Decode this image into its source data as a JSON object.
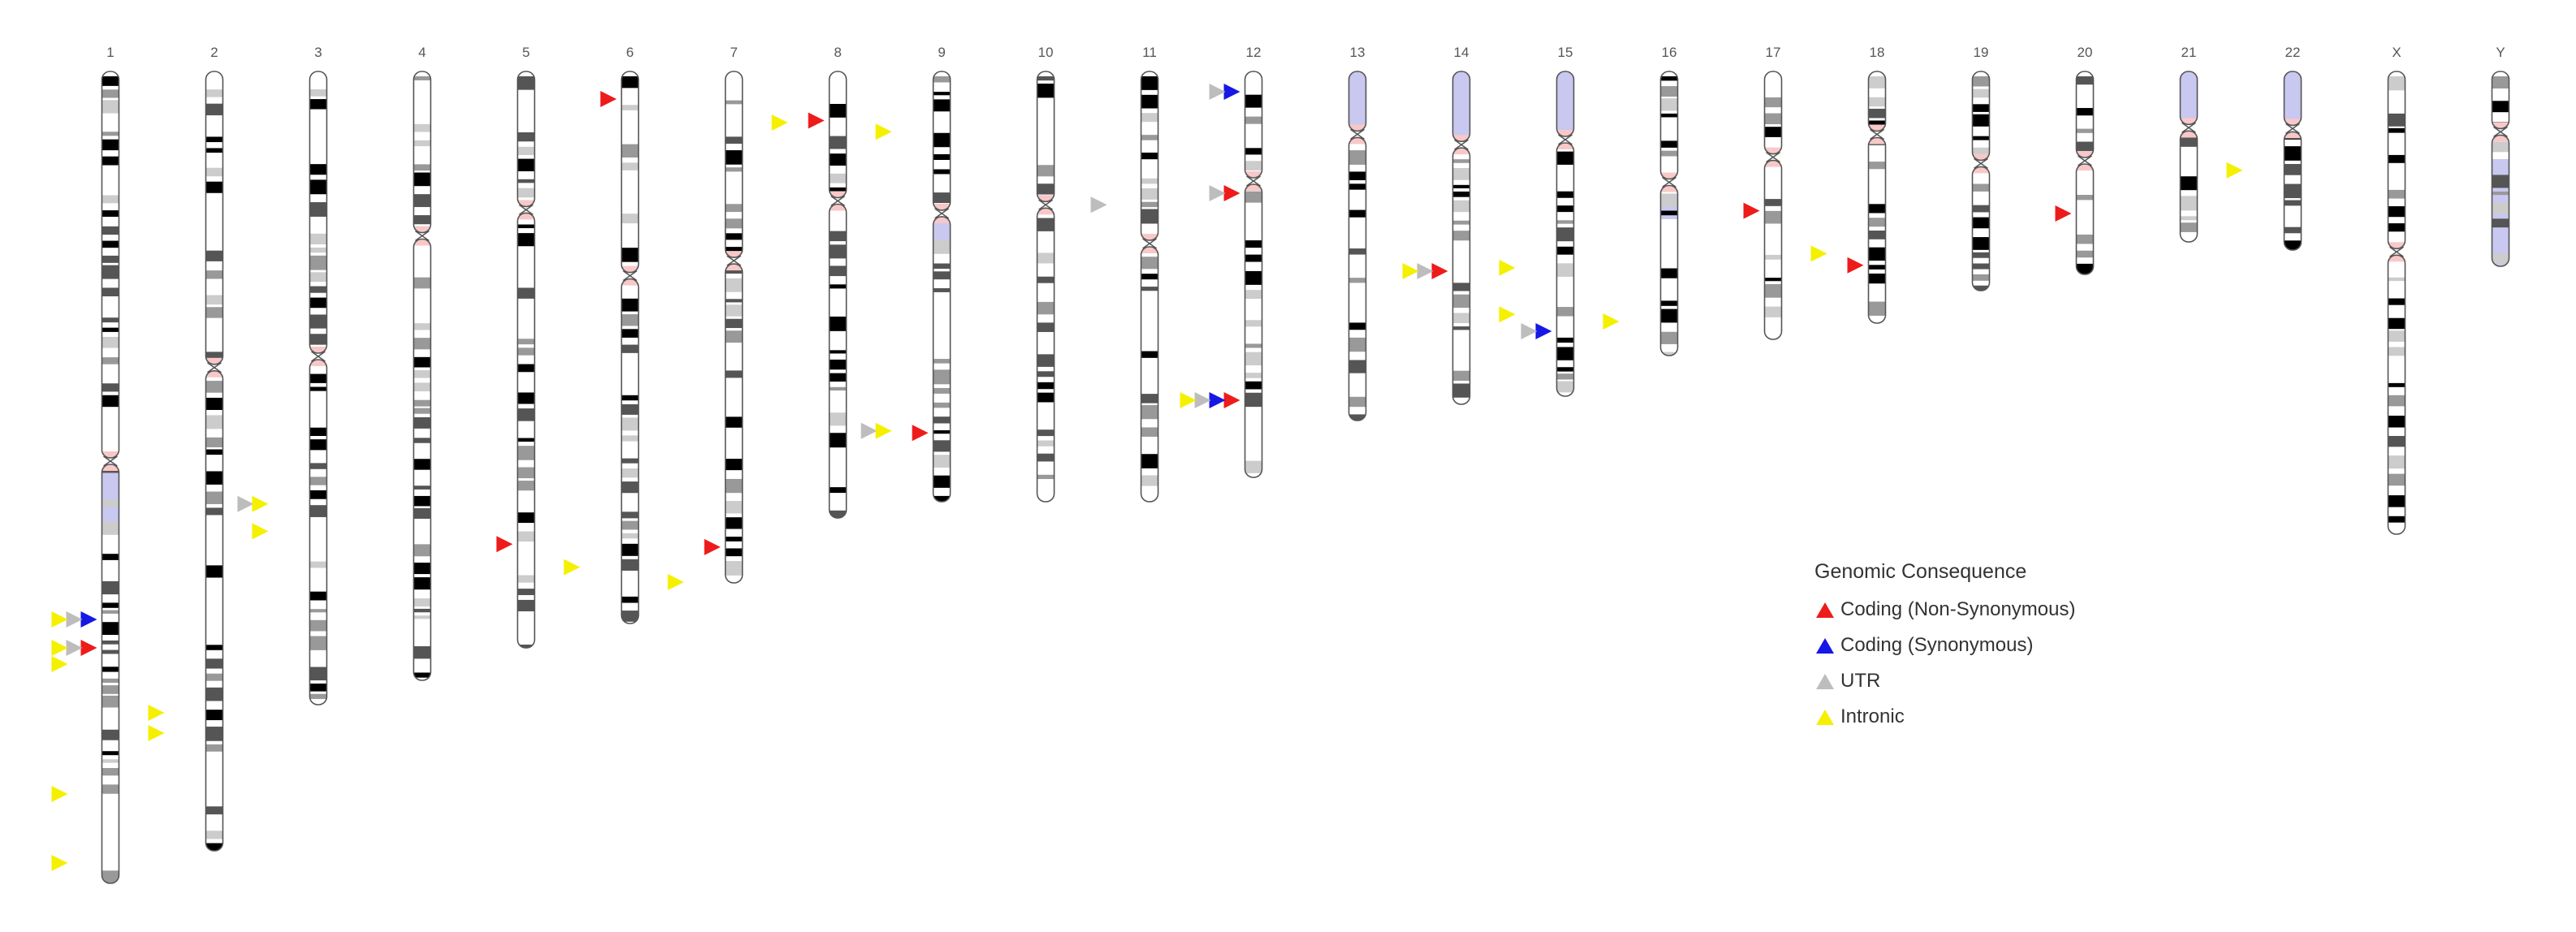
{
  "chromosomes": [
    {
      "name": "1",
      "length": 1.0,
      "centromere": 0.48,
      "stain": "gray"
    },
    {
      "name": "2",
      "length": 0.96,
      "centromere": 0.38,
      "stain": "gray"
    },
    {
      "name": "3",
      "length": 0.78,
      "centromere": 0.45,
      "stain": "gray"
    },
    {
      "name": "4",
      "length": 0.75,
      "centromere": 0.27,
      "stain": "gray"
    },
    {
      "name": "5",
      "length": 0.71,
      "centromere": 0.24,
      "stain": "gray"
    },
    {
      "name": "6",
      "length": 0.68,
      "centromere": 0.37,
      "stain": "gray"
    },
    {
      "name": "7",
      "length": 0.63,
      "centromere": 0.37,
      "stain": "gray"
    },
    {
      "name": "8",
      "length": 0.55,
      "centromere": 0.29,
      "stain": "gray"
    },
    {
      "name": "9",
      "length": 0.53,
      "centromere": 0.33,
      "stain": "gray"
    },
    {
      "name": "10",
      "length": 0.53,
      "centromere": 0.31,
      "stain": "gray"
    },
    {
      "name": "11",
      "length": 0.53,
      "centromere": 0.4,
      "stain": "gray"
    },
    {
      "name": "12",
      "length": 0.5,
      "centromere": 0.27,
      "stain": "gray"
    },
    {
      "name": "13",
      "length": 0.43,
      "centromere": 0.18,
      "stain": "blue"
    },
    {
      "name": "14",
      "length": 0.41,
      "centromere": 0.22,
      "stain": "blue"
    },
    {
      "name": "15",
      "length": 0.4,
      "centromere": 0.21,
      "stain": "blue"
    },
    {
      "name": "16",
      "length": 0.35,
      "centromere": 0.39,
      "stain": "gray"
    },
    {
      "name": "17",
      "length": 0.33,
      "centromere": 0.32,
      "stain": "gray"
    },
    {
      "name": "18",
      "length": 0.31,
      "centromere": 0.25,
      "stain": "gray"
    },
    {
      "name": "19",
      "length": 0.27,
      "centromere": 0.42,
      "stain": "gray"
    },
    {
      "name": "20",
      "length": 0.25,
      "centromere": 0.44,
      "stain": "gray"
    },
    {
      "name": "21",
      "length": 0.21,
      "centromere": 0.33,
      "stain": "blue"
    },
    {
      "name": "22",
      "length": 0.22,
      "centromere": 0.32,
      "stain": "blue"
    },
    {
      "name": "X",
      "length": 0.57,
      "centromere": 0.39,
      "stain": "gray"
    },
    {
      "name": "Y",
      "length": 0.24,
      "centromere": 0.31,
      "stain": "gray"
    }
  ],
  "annotations": [
    {
      "chr": "1",
      "pos": 0.675,
      "side": "left",
      "offset": 0,
      "type": "blue"
    },
    {
      "chr": "1",
      "pos": 0.675,
      "side": "left",
      "offset": 1,
      "type": "gray"
    },
    {
      "chr": "1",
      "pos": 0.675,
      "side": "left",
      "offset": 2,
      "type": "yellow"
    },
    {
      "chr": "1",
      "pos": 0.71,
      "side": "left",
      "offset": 0,
      "type": "red"
    },
    {
      "chr": "1",
      "pos": 0.71,
      "side": "left",
      "offset": 1,
      "type": "gray"
    },
    {
      "chr": "1",
      "pos": 0.71,
      "side": "left",
      "offset": 2,
      "type": "yellow"
    },
    {
      "chr": "1",
      "pos": 0.73,
      "side": "left",
      "offset": 2,
      "type": "yellow"
    },
    {
      "chr": "1",
      "pos": 0.79,
      "side": "right",
      "offset": 2,
      "type": "yellow"
    },
    {
      "chr": "1",
      "pos": 0.815,
      "side": "right",
      "offset": 2,
      "type": "yellow"
    },
    {
      "chr": "1",
      "pos": 0.89,
      "side": "left",
      "offset": 2,
      "type": "yellow"
    },
    {
      "chr": "1",
      "pos": 0.975,
      "side": "left",
      "offset": 2,
      "type": "yellow"
    },
    {
      "chr": "2",
      "pos": 0.555,
      "side": "right",
      "offset": 1,
      "type": "gray"
    },
    {
      "chr": "2",
      "pos": 0.555,
      "side": "right",
      "offset": 2,
      "type": "yellow"
    },
    {
      "chr": "2",
      "pos": 0.59,
      "side": "right",
      "offset": 2,
      "type": "yellow"
    },
    {
      "chr": "5",
      "pos": 0.82,
      "side": "left",
      "offset": 0,
      "type": "red"
    },
    {
      "chr": "5",
      "pos": 0.86,
      "side": "right",
      "offset": 2,
      "type": "yellow"
    },
    {
      "chr": "6",
      "pos": 0.05,
      "side": "left",
      "offset": 0,
      "type": "red"
    },
    {
      "chr": "6",
      "pos": 0.925,
      "side": "right",
      "offset": 2,
      "type": "yellow"
    },
    {
      "chr": "7",
      "pos": 0.1,
      "side": "right",
      "offset": 2,
      "type": "yellow"
    },
    {
      "chr": "7",
      "pos": 0.93,
      "side": "left",
      "offset": 0,
      "type": "red"
    },
    {
      "chr": "8",
      "pos": 0.11,
      "side": "left",
      "offset": 0,
      "type": "red"
    },
    {
      "chr": "8",
      "pos": 0.135,
      "side": "right",
      "offset": 2,
      "type": "yellow"
    },
    {
      "chr": "8",
      "pos": 0.805,
      "side": "right",
      "offset": 1,
      "type": "gray"
    },
    {
      "chr": "8",
      "pos": 0.805,
      "side": "right",
      "offset": 2,
      "type": "yellow"
    },
    {
      "chr": "9",
      "pos": 0.84,
      "side": "left",
      "offset": 0,
      "type": "red"
    },
    {
      "chr": "11",
      "pos": 0.31,
      "side": "left",
      "offset": 2,
      "type": "gray"
    },
    {
      "chr": "12",
      "pos": 0.05,
      "side": "left",
      "offset": 0,
      "type": "blue"
    },
    {
      "chr": "12",
      "pos": 0.05,
      "side": "left",
      "offset": 1,
      "type": "gray"
    },
    {
      "chr": "12",
      "pos": 0.3,
      "side": "left",
      "offset": 0,
      "type": "red"
    },
    {
      "chr": "12",
      "pos": 0.3,
      "side": "left",
      "offset": 1,
      "type": "gray"
    },
    {
      "chr": "12",
      "pos": 0.81,
      "side": "left",
      "offset": 0,
      "type": "red"
    },
    {
      "chr": "12",
      "pos": 0.81,
      "side": "left",
      "offset": 1,
      "type": "blue"
    },
    {
      "chr": "12",
      "pos": 0.81,
      "side": "left",
      "offset": 2,
      "type": "gray"
    },
    {
      "chr": "12",
      "pos": 0.81,
      "side": "left",
      "offset": 3,
      "type": "yellow"
    },
    {
      "chr": "14",
      "pos": 0.6,
      "side": "left",
      "offset": 0,
      "type": "red"
    },
    {
      "chr": "14",
      "pos": 0.6,
      "side": "left",
      "offset": 1,
      "type": "gray"
    },
    {
      "chr": "14",
      "pos": 0.6,
      "side": "left",
      "offset": 2,
      "type": "yellow"
    },
    {
      "chr": "14",
      "pos": 0.59,
      "side": "right",
      "offset": 2,
      "type": "yellow"
    },
    {
      "chr": "14",
      "pos": 0.73,
      "side": "right",
      "offset": 2,
      "type": "yellow"
    },
    {
      "chr": "15",
      "pos": 0.8,
      "side": "left",
      "offset": 0,
      "type": "blue"
    },
    {
      "chr": "15",
      "pos": 0.8,
      "side": "left",
      "offset": 1,
      "type": "gray"
    },
    {
      "chr": "15",
      "pos": 0.77,
      "side": "right",
      "offset": 2,
      "type": "yellow"
    },
    {
      "chr": "17",
      "pos": 0.52,
      "side": "left",
      "offset": 0,
      "type": "red"
    },
    {
      "chr": "17",
      "pos": 0.68,
      "side": "right",
      "offset": 2,
      "type": "yellow"
    },
    {
      "chr": "18",
      "pos": 0.77,
      "side": "left",
      "offset": 0,
      "type": "red"
    },
    {
      "chr": "20",
      "pos": 0.7,
      "side": "left",
      "offset": 0,
      "type": "red"
    },
    {
      "chr": "21",
      "pos": 0.58,
      "side": "right",
      "offset": 2,
      "type": "yellow"
    }
  ],
  "legend": {
    "title": "Genomic Consequence",
    "items": [
      {
        "label": "Coding (Non-Synonymous)",
        "type": "red"
      },
      {
        "label": "Coding (Synonymous)",
        "type": "blue"
      },
      {
        "label": "UTR",
        "type": "gray"
      },
      {
        "label": "Intronic",
        "type": "yellow"
      }
    ]
  },
  "colors": {
    "red": "#ee1b1b",
    "blue": "#1717e6",
    "gray": "#bdbdbd",
    "yellow": "#f5f000",
    "centromere": "#f8c8c8",
    "blue_region": "#c8c8f0"
  }
}
